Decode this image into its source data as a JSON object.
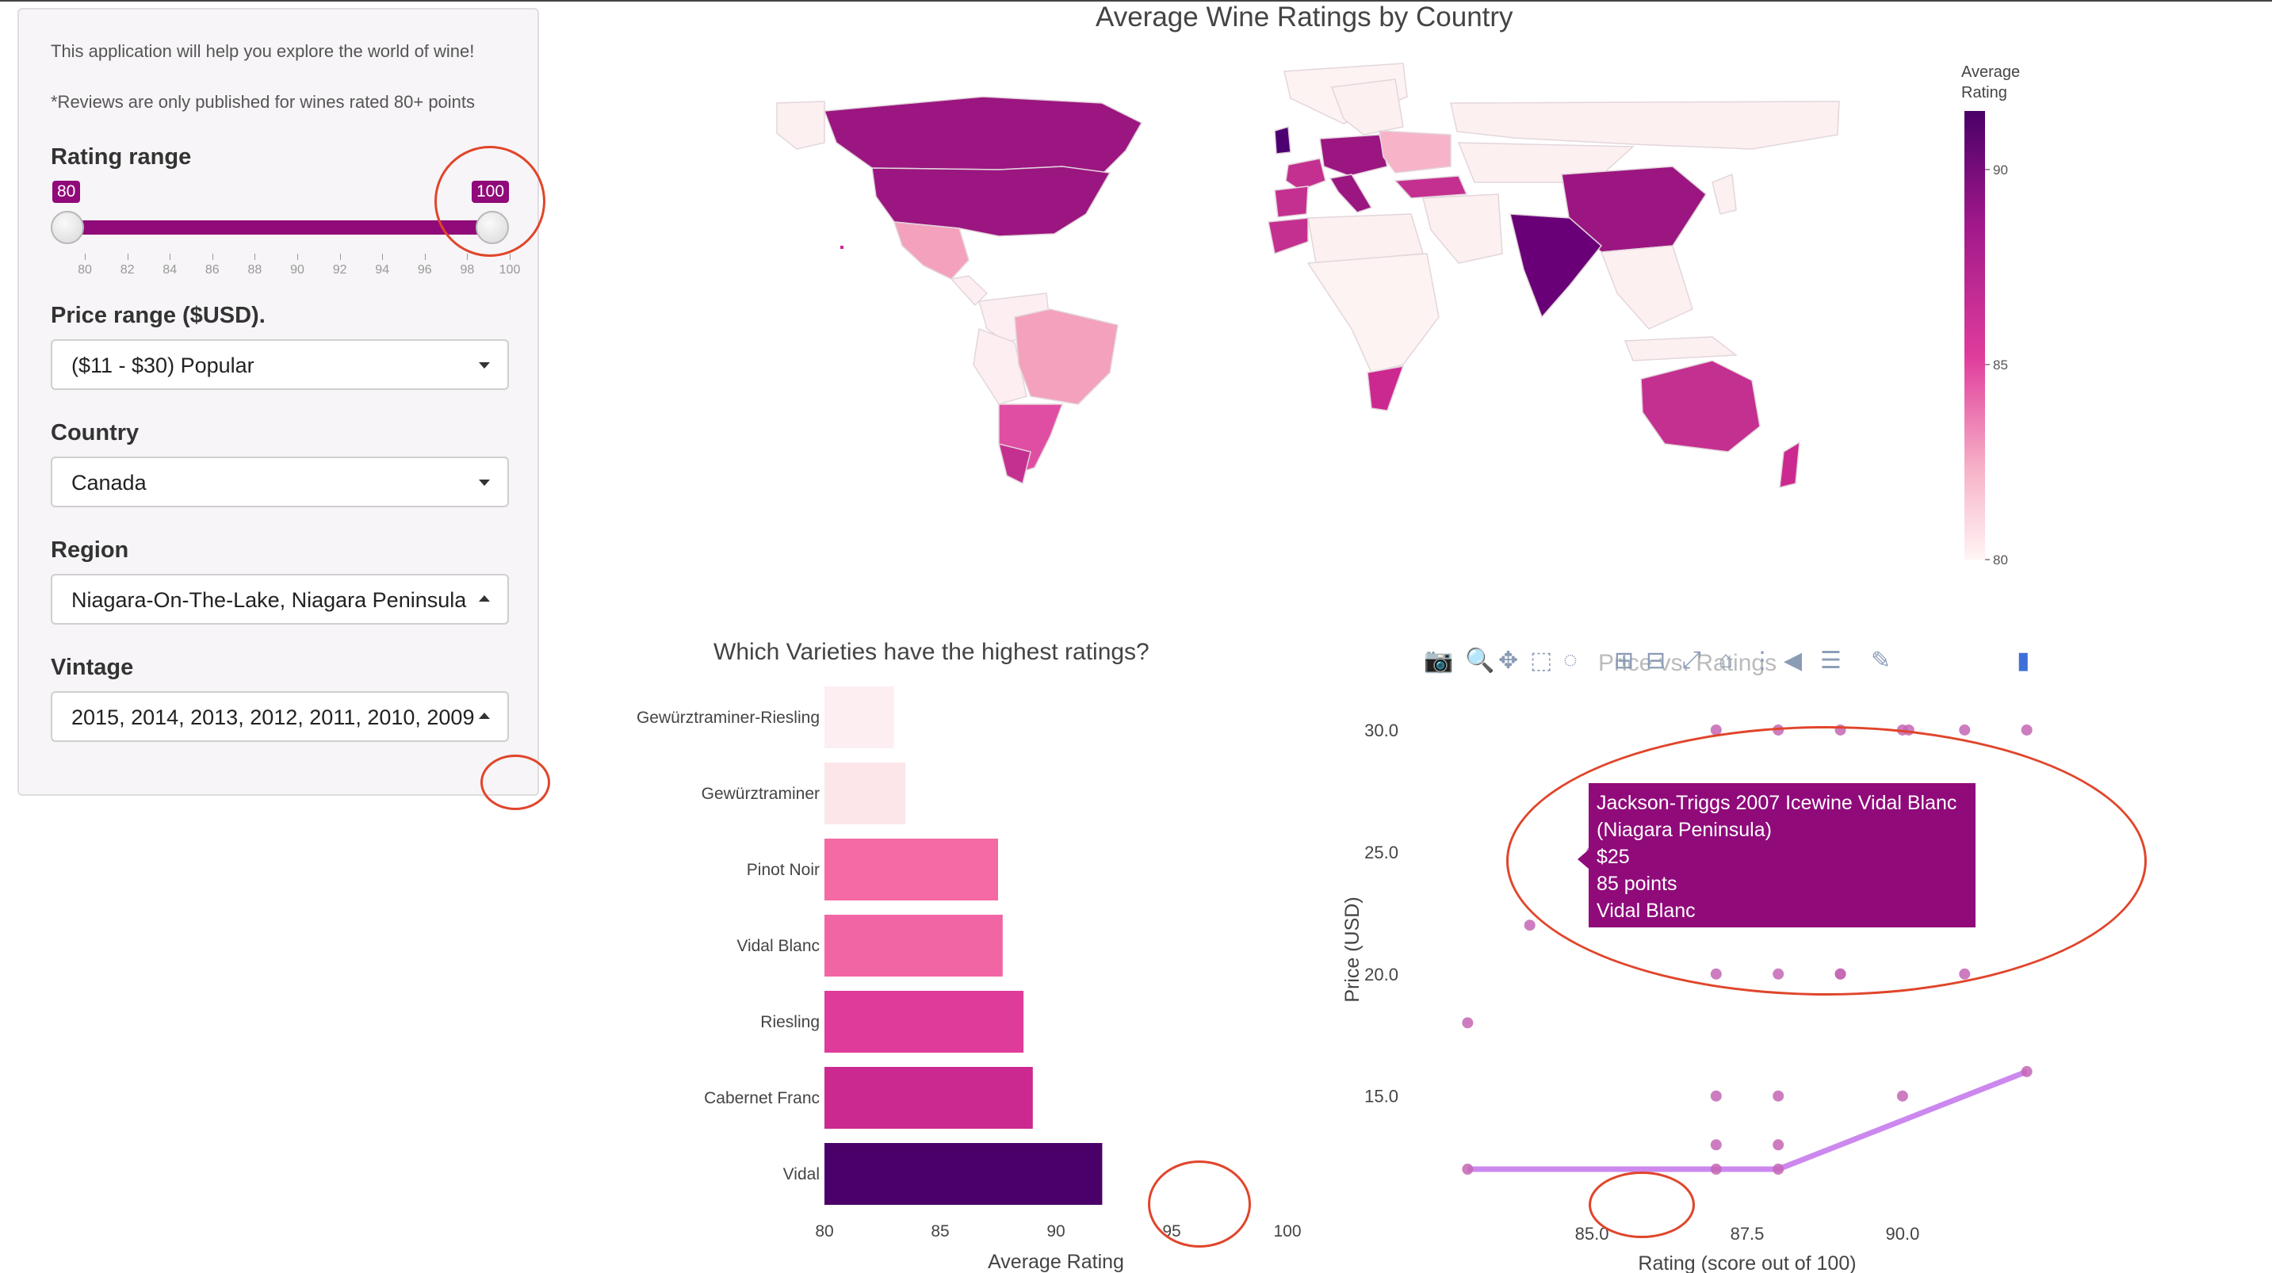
{
  "sidebar": {
    "intro": "This application will help you explore the world of wine!",
    "note": "*Reviews are only published for wines rated 80+ points",
    "rating": {
      "label": "Rating range",
      "min_value": "80",
      "max_value": "100",
      "ticks": [
        "80",
        "82",
        "84",
        "86",
        "88",
        "90",
        "92",
        "94",
        "96",
        "98",
        "100"
      ]
    },
    "price": {
      "label": "Price range ($USD).",
      "value": "($11 - $30) Popular"
    },
    "country": {
      "label": "Country",
      "value": "Canada"
    },
    "region": {
      "label": "Region",
      "value": "Niagara-On-The-Lake, Niagara Peninsula"
    },
    "vintage": {
      "label": "Vintage",
      "value": "2015, 2014, 2013, 2012, 2011, 2010, 2009"
    }
  },
  "map": {
    "title": "Average Wine Ratings by Country",
    "colorbar": {
      "title_line1": "Average",
      "title_line2": "Rating",
      "ticks": [
        "90",
        "85",
        "80"
      ],
      "range": [
        80,
        91.5
      ]
    }
  },
  "bar_chart": {
    "title": "Which Varieties have the highest ratings?",
    "xlabel": "Average Rating",
    "x_ticks": [
      "80",
      "85",
      "90",
      "95",
      "100"
    ]
  },
  "scatter_chart": {
    "title": "Price vs. Ratings",
    "xlabel": "Rating (score out of 100)",
    "ylabel": "Price (USD)",
    "x_ticks": [
      "85.0",
      "87.5",
      "90.0"
    ],
    "y_ticks": [
      "30.0",
      "25.0",
      "20.0",
      "15.0"
    ]
  },
  "tooltip": {
    "line1": "Jackson-Triggs 2007 Icewine Vidal Blanc",
    "line2": "(Niagara Peninsula)",
    "line3": "$25",
    "line4": "85 points",
    "line5": "Vidal Blanc"
  },
  "modebar_icons": [
    "camera-icon",
    "zoom-icon",
    "pan-icon",
    "box-select-icon",
    "lasso-icon",
    "zoom-in-icon",
    "zoom-out-icon",
    "autoscale-icon",
    "reset-axes-icon",
    "spike-lines-icon",
    "hover-closest-icon",
    "hover-compare-icon",
    "edit-icon",
    "plotly-logo-icon"
  ],
  "colors": {
    "accent": "#900a7a",
    "annotation": "#e0452b",
    "trend": "#cc88ee",
    "point": "#c466b4"
  },
  "chart_data": [
    {
      "type": "bar",
      "orientation": "horizontal",
      "title": "Which Varieties have the highest ratings?",
      "xlabel": "Average Rating",
      "xlim": [
        80,
        100
      ],
      "categories": [
        "Gewürztraminer-Riesling",
        "Gewürztraminer",
        "Pinot Noir",
        "Vidal Blanc",
        "Riesling",
        "Cabernet Franc",
        "Vidal"
      ],
      "values": [
        83.0,
        83.5,
        87.5,
        87.7,
        88.6,
        89.0,
        92.0
      ],
      "colors": [
        "#fdeef1",
        "#fce6ea",
        "#f569a4",
        "#f265a5",
        "#df3b9a",
        "#cc2990",
        "#4a0068"
      ]
    },
    {
      "type": "scatter",
      "title": "Price vs. Ratings",
      "xlabel": "Rating (score out of 100)",
      "ylabel": "Price (USD)",
      "xlim": [
        82.6,
        92.4
      ],
      "ylim": [
        10.8,
        31.2
      ],
      "points": [
        [
          83,
          18
        ],
        [
          83,
          12
        ],
        [
          84,
          22
        ],
        [
          85,
          25
        ],
        [
          87,
          30
        ],
        [
          87,
          20
        ],
        [
          87,
          15
        ],
        [
          87,
          13
        ],
        [
          87,
          12
        ],
        [
          88,
          30
        ],
        [
          88,
          20
        ],
        [
          88,
          15
        ],
        [
          88,
          13
        ],
        [
          88,
          12
        ],
        [
          89,
          30
        ],
        [
          89,
          20
        ],
        [
          89,
          20
        ],
        [
          90,
          30
        ],
        [
          90.1,
          30
        ],
        [
          90,
          15
        ],
        [
          91,
          30
        ],
        [
          91,
          20
        ],
        [
          92,
          30
        ],
        [
          92,
          16
        ]
      ],
      "trend": [
        [
          83,
          12
        ],
        [
          85,
          12
        ],
        [
          88,
          12
        ],
        [
          92,
          16
        ]
      ]
    }
  ]
}
